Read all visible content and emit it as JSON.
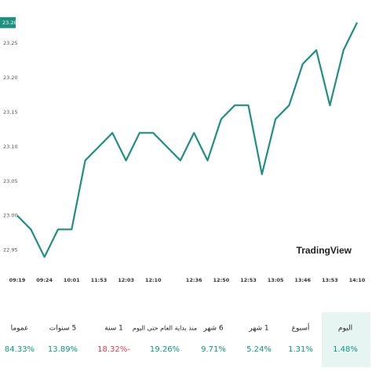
{
  "chart_data": {
    "type": "line",
    "categories": [
      "09:19",
      null,
      "09:24",
      null,
      "10:01",
      null,
      "11:53",
      null,
      "12:03",
      null,
      "12:10",
      null,
      null,
      "12:36",
      null,
      "12:50",
      null,
      "12:53",
      null,
      "13:05",
      null,
      "13:46",
      null,
      "13:53",
      null,
      "14:10"
    ],
    "series": [
      {
        "name": null,
        "color": "#1f8f80",
        "values": [
          23.0,
          22.98,
          22.94,
          22.98,
          22.98,
          23.08,
          23.1,
          23.12,
          23.08,
          23.12,
          23.12,
          23.1,
          23.08,
          23.12,
          23.08,
          23.14,
          23.16,
          23.16,
          23.06,
          23.14,
          23.16,
          23.22,
          23.24,
          23.16,
          23.24,
          23.28
        ]
      }
    ],
    "ylim": [
      22.92,
      23.29
    ],
    "yticks": [
      22.95,
      {
        "value": 23,
        "label": "23.00"
      },
      23.05,
      {
        "value": 23.1,
        "label": "23.10"
      },
      23.15,
      {
        "value": 23.2,
        "label": "23.20"
      },
      23.25
    ],
    "last_value_label": "23.28",
    "watermark": "TradingView"
  },
  "periods": [
    {
      "label": "اليوم",
      "value": "1.48%",
      "color": "#089981",
      "selected": true
    },
    {
      "label": "أسبوع",
      "value": "1.31%",
      "color": "#089981"
    },
    {
      "label": "1 شهر",
      "value": "5.24%",
      "color": "#089981"
    },
    {
      "label": "6 شهر",
      "value": "9.71%",
      "color": "#089981"
    },
    {
      "label": "منذ بداية العام حتى اليوم",
      "value": "19.26%",
      "color": "#089981"
    },
    {
      "label": "1 سنة",
      "value": "18.32%-",
      "color": "#f23645"
    },
    {
      "label": "5 سنوات",
      "value": "13.89%",
      "color": "#089981"
    },
    {
      "label": "عموما",
      "value": "84.33%",
      "color": "#089981"
    }
  ]
}
